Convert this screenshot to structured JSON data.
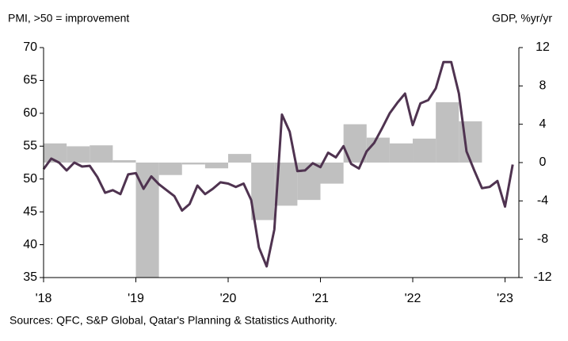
{
  "chart_data": {
    "type": "combo",
    "y_label": "PMI, >50 = improvement",
    "y2_label": "GDP, %yr/yr",
    "source": "Sources: QFC, S&P Global, Qatar's Planning & Statistics Authority.",
    "xlim": [
      2018,
      2023.15
    ],
    "xticks": [
      {
        "value": 2018,
        "label": "'18"
      },
      {
        "value": 2019,
        "label": "'19"
      },
      {
        "value": 2020,
        "label": "'20"
      },
      {
        "value": 2021,
        "label": "'21"
      },
      {
        "value": 2022,
        "label": "'22"
      },
      {
        "value": 2023,
        "label": "'23"
      }
    ],
    "ylim": [
      35,
      70
    ],
    "yticks": [
      35,
      40,
      45,
      50,
      55,
      60,
      65,
      70
    ],
    "y2lim": [
      -12,
      12
    ],
    "y2ticks": [
      -12,
      -8,
      -4,
      0,
      4,
      8,
      12
    ],
    "series": [
      {
        "type": "bar",
        "axis": "y2",
        "color": "#c0c0c0",
        "x": [
          2018,
          2018.25,
          2018.5,
          2018.75,
          2019,
          2019.25,
          2019.5,
          2019.75,
          2020,
          2020.25,
          2020.5,
          2020.75,
          2021,
          2021.25,
          2021.5,
          2021.75,
          2022,
          2022.25,
          2022.5
        ],
        "values": [
          2.0,
          1.7,
          1.8,
          0.25,
          -12,
          -1.3,
          -0.2,
          -0.6,
          0.9,
          -6.0,
          -4.5,
          -3.9,
          -2.2,
          4.0,
          2.6,
          2.0,
          2.5,
          6.3,
          4.3
        ]
      },
      {
        "type": "line",
        "axis": "y",
        "color": "#4f3350",
        "x": [
          2018,
          2018.083,
          2018.167,
          2018.25,
          2018.333,
          2018.417,
          2018.5,
          2018.583,
          2018.667,
          2018.75,
          2018.833,
          2018.917,
          2019,
          2019.083,
          2019.167,
          2019.25,
          2019.333,
          2019.417,
          2019.5,
          2019.583,
          2019.667,
          2019.75,
          2019.833,
          2019.917,
          2020,
          2020.083,
          2020.167,
          2020.25,
          2020.333,
          2020.417,
          2020.5,
          2020.583,
          2020.667,
          2020.75,
          2020.833,
          2020.917,
          2021,
          2021.083,
          2021.167,
          2021.25,
          2021.333,
          2021.417,
          2021.5,
          2021.583,
          2021.667,
          2021.75,
          2021.833,
          2021.917,
          2022,
          2022.083,
          2022.167,
          2022.25,
          2022.333,
          2022.417,
          2022.5,
          2022.583,
          2022.667,
          2022.75,
          2022.833,
          2022.917,
          2023,
          2023.083
        ],
        "values": [
          51.5,
          53.1,
          52.5,
          51.3,
          52.5,
          51.9,
          52.0,
          50.3,
          47.9,
          48.3,
          47.7,
          50.7,
          50.9,
          48.5,
          50.4,
          49.2,
          48.3,
          47.4,
          45.2,
          46.2,
          49.0,
          47.7,
          48.5,
          49.5,
          49.3,
          48.8,
          49.3,
          46.8,
          39.6,
          36.7,
          42.3,
          59.8,
          57.2,
          51.2,
          51.3,
          52.4,
          51.8,
          54.0,
          53.3,
          55.0,
          52.3,
          51.6,
          54.2,
          55.5,
          57.7,
          60.0,
          61.6,
          63.0,
          58.2,
          61.5,
          62.0,
          63.8,
          67.8,
          67.8,
          63.0,
          54.2,
          51.3,
          48.6,
          48.8,
          49.7,
          45.8,
          52.2
        ]
      }
    ]
  }
}
